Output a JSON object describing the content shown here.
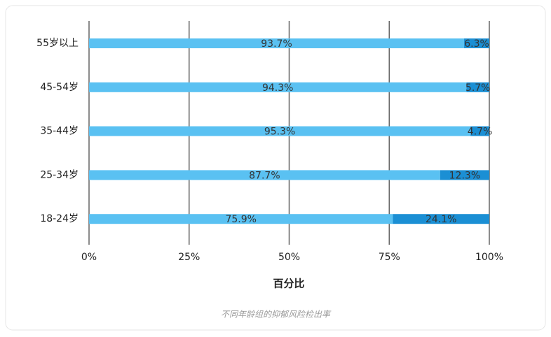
{
  "chart_data": {
    "type": "stacked_barh",
    "categories": [
      "55岁以上",
      "45-54岁",
      "35-44岁",
      "25-34岁",
      "18-24岁"
    ],
    "series": [
      {
        "color": "#5ac1f2",
        "values": [
          93.7,
          94.3,
          95.3,
          87.7,
          75.9
        ],
        "value_labels": [
          "93.7%",
          "94.3%",
          "95.3%",
          "87.7%",
          "75.9%"
        ]
      },
      {
        "color": "#1b8fd4",
        "values": [
          6.3,
          5.7,
          4.7,
          12.3,
          24.1
        ],
        "value_labels": [
          "6.3%",
          "5.7%",
          "4.7%",
          "12.3%",
          "24.1%"
        ]
      }
    ],
    "xlim": [
      0,
      100
    ],
    "xticks": [
      {
        "value": 0,
        "label": "0%"
      },
      {
        "value": 25,
        "label": "25%"
      },
      {
        "value": 50,
        "label": "50%"
      },
      {
        "value": 75,
        "label": "75%"
      },
      {
        "value": 100,
        "label": "100%"
      }
    ],
    "grid": true,
    "xlabel": "百分比",
    "caption": "不同年龄组的抑郁风险检出率"
  }
}
